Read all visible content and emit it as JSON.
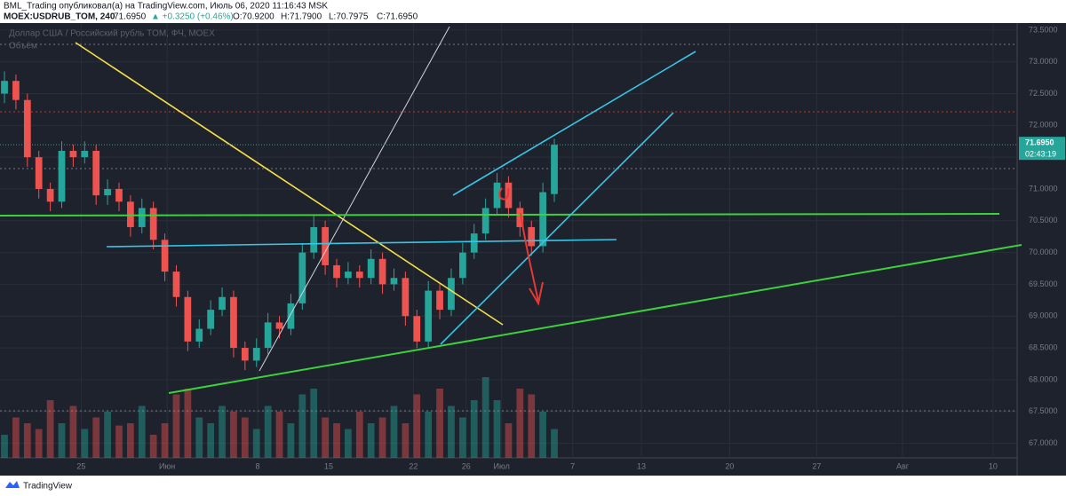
{
  "header": {
    "line1": "BML_Trading опубликовал(а) на TradingView.com, Июль 06, 2020 11:16:43 MSK",
    "symbol": "MOEX:USDRUB_TOM, 240",
    "last": "71.6950",
    "change": "▲ +0.3250 (+0.46%)",
    "open": "O:70.9200",
    "high": "H:71.7900",
    "low": "L:70.7975",
    "close": "C:71.6950"
  },
  "chart_data": {
    "type": "candlestick",
    "title": "Доллар США / Российский рубль TOM, ФЧ, MOEX",
    "volume_label": "Объём",
    "countdown": "02:43:19",
    "up_color": "#26a69a",
    "down_color": "#ef5350",
    "candles": [
      [
        72.5,
        72.85,
        72.35,
        72.7
      ],
      [
        72.7,
        72.8,
        72.25,
        72.4
      ],
      [
        72.4,
        72.5,
        71.35,
        71.5
      ],
      [
        71.5,
        71.6,
        70.85,
        71.0
      ],
      [
        71.0,
        71.1,
        70.65,
        70.8
      ],
      [
        70.8,
        71.75,
        70.7,
        71.6
      ],
      [
        71.6,
        71.7,
        71.35,
        71.5
      ],
      [
        71.5,
        71.75,
        71.4,
        71.6
      ],
      [
        71.6,
        71.7,
        70.75,
        70.9
      ],
      [
        70.9,
        71.15,
        70.75,
        71.0
      ],
      [
        71.0,
        71.1,
        70.65,
        70.8
      ],
      [
        70.8,
        70.9,
        70.25,
        70.4
      ],
      [
        70.4,
        70.85,
        70.3,
        70.7
      ],
      [
        70.7,
        70.8,
        70.05,
        70.2
      ],
      [
        70.2,
        70.3,
        69.55,
        69.7
      ],
      [
        69.7,
        69.8,
        69.15,
        69.3
      ],
      [
        69.3,
        69.4,
        68.45,
        68.6
      ],
      [
        68.6,
        68.95,
        68.5,
        68.8
      ],
      [
        68.8,
        69.25,
        68.7,
        69.1
      ],
      [
        69.1,
        69.45,
        69.0,
        69.3
      ],
      [
        69.3,
        69.4,
        68.35,
        68.5
      ],
      [
        68.5,
        68.6,
        68.15,
        68.3
      ],
      [
        68.3,
        68.65,
        68.2,
        68.5
      ],
      [
        68.5,
        69.05,
        68.4,
        68.9
      ],
      [
        68.9,
        69.0,
        68.65,
        68.8
      ],
      [
        68.8,
        69.35,
        68.7,
        69.2
      ],
      [
        69.2,
        70.15,
        69.1,
        70.0
      ],
      [
        70.0,
        70.6,
        69.9,
        70.4
      ],
      [
        70.4,
        70.5,
        69.65,
        69.8
      ],
      [
        69.8,
        69.9,
        69.45,
        69.6
      ],
      [
        69.6,
        69.85,
        69.5,
        69.7
      ],
      [
        69.7,
        69.8,
        69.45,
        69.6
      ],
      [
        69.6,
        70.05,
        69.5,
        69.9
      ],
      [
        69.9,
        70.0,
        69.35,
        69.5
      ],
      [
        69.5,
        69.75,
        69.4,
        69.6
      ],
      [
        69.6,
        69.7,
        68.85,
        69.0
      ],
      [
        69.0,
        69.1,
        68.5,
        68.6
      ],
      [
        68.6,
        69.55,
        68.5,
        69.4
      ],
      [
        69.4,
        69.5,
        68.95,
        69.1
      ],
      [
        69.1,
        69.75,
        69.0,
        69.6
      ],
      [
        69.6,
        70.15,
        69.5,
        70.0
      ],
      [
        70.0,
        70.45,
        69.9,
        70.3
      ],
      [
        70.3,
        70.85,
        70.2,
        70.7
      ],
      [
        70.7,
        71.25,
        70.6,
        71.1
      ],
      [
        71.1,
        71.2,
        70.55,
        70.7
      ],
      [
        70.7,
        70.8,
        70.25,
        70.4
      ],
      [
        70.4,
        70.5,
        69.95,
        70.1
      ],
      [
        70.1,
        71.1,
        70.0,
        70.95
      ],
      [
        70.92,
        71.79,
        70.7975,
        71.695
      ]
    ],
    "volume": [
      20,
      35,
      30,
      25,
      50,
      30,
      45,
      25,
      35,
      40,
      28,
      30,
      45,
      20,
      30,
      55,
      60,
      35,
      30,
      45,
      40,
      35,
      25,
      45,
      40,
      30,
      55,
      60,
      35,
      30,
      25,
      40,
      30,
      35,
      45,
      30,
      55,
      40,
      60,
      45,
      35,
      50,
      70,
      50,
      30,
      60,
      55,
      40,
      25
    ],
    "volume_lim": [
      0,
      100
    ],
    "last_price": 71.695,
    "xlim": [
      -0.39,
      88.4
    ],
    "xticks": [
      {
        "value": 6.7,
        "label": "25"
      },
      {
        "value": 14.2,
        "label": "Июн"
      },
      {
        "value": 22.1,
        "label": "8"
      },
      {
        "value": 28.3,
        "label": "15"
      },
      {
        "value": 35.7,
        "label": "22"
      },
      {
        "value": 40.3,
        "label": "26"
      },
      {
        "value": 43.4,
        "label": "Июл"
      },
      {
        "value": 49.6,
        "label": "7"
      },
      {
        "value": 55.6,
        "label": "13"
      },
      {
        "value": 63.3,
        "label": "20"
      },
      {
        "value": 70.9,
        "label": "27"
      },
      {
        "value": 78.4,
        "label": "Авг"
      },
      {
        "value": 86.3,
        "label": "10"
      }
    ],
    "ylim": [
      66.77,
      73.61
    ],
    "yticks": [
      {
        "value": 73.5,
        "label": "73.5000"
      },
      {
        "value": 73,
        "label": "73.0000"
      },
      {
        "value": 72.5,
        "label": "72.5000"
      },
      {
        "value": 72,
        "label": "72.0000"
      },
      {
        "value": 71.5,
        "label": "71.5000"
      },
      {
        "value": 71,
        "label": "71.0000"
      },
      {
        "value": 70.5,
        "label": "70.5000"
      },
      {
        "value": 70,
        "label": "70.0000"
      },
      {
        "value": 69.5,
        "label": "69.5000"
      },
      {
        "value": 69,
        "label": "69.0000"
      },
      {
        "value": 68.5,
        "label": "68.5000"
      },
      {
        "value": 68,
        "label": "68.0000"
      },
      {
        "value": 67.5,
        "label": "67.5000"
      },
      {
        "value": 67,
        "label": "67.0000"
      }
    ],
    "footer": "TradingView"
  }
}
